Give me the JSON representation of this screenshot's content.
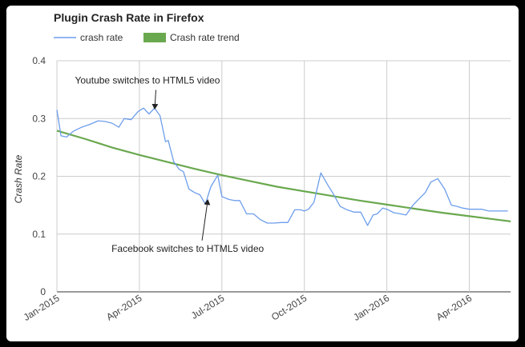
{
  "chart_data": {
    "type": "line",
    "title": "Plugin Crash Rate in Firefox",
    "xlabel": "",
    "ylabel": "Crash Rate",
    "ylim": [
      0,
      0.4
    ],
    "yticks": [
      0,
      0.1,
      0.2,
      0.3,
      0.4
    ],
    "ytick_labels": [
      "0",
      "0.1",
      "0.2",
      "0.3",
      "0.4"
    ],
    "xlim": [
      0,
      16.5
    ],
    "xticks": [
      {
        "label": "Jan-2015",
        "x": 0
      },
      {
        "label": "Apr-2015",
        "x": 3
      },
      {
        "label": "Jul-2015",
        "x": 6
      },
      {
        "label": "Oct-2015",
        "x": 9
      },
      {
        "label": "Jan-2016",
        "x": 12
      },
      {
        "label": "Apr-2016",
        "x": 15
      }
    ],
    "legend": [
      {
        "name": "crash rate",
        "color": "#6d9eeb",
        "kind": "line"
      },
      {
        "name": "Crash rate trend",
        "color": "#6aa84f",
        "kind": "box"
      }
    ],
    "series": [
      {
        "name": "crash rate",
        "color": "#6d9eeb",
        "x": [
          0,
          0.15,
          0.35,
          0.6,
          0.9,
          1.2,
          1.5,
          1.75,
          2.0,
          2.25,
          2.45,
          2.7,
          2.95,
          3.15,
          3.35,
          3.55,
          3.75,
          3.95,
          4.05,
          4.25,
          4.45,
          4.6,
          4.8,
          5.0,
          5.2,
          5.4,
          5.6,
          5.85,
          6.0,
          6.25,
          6.45,
          6.65,
          6.9,
          7.15,
          7.4,
          7.65,
          7.9,
          8.15,
          8.4,
          8.65,
          8.85,
          9.0,
          9.15,
          9.35,
          9.6,
          9.85,
          10.05,
          10.3,
          10.55,
          10.8,
          11.05,
          11.3,
          11.5,
          11.65,
          11.85,
          12.05,
          12.25,
          12.5,
          12.7,
          12.95,
          13.15,
          13.4,
          13.6,
          13.85,
          14.1,
          14.35,
          14.55,
          14.75,
          15.0,
          15.2,
          15.45,
          15.7,
          16.0,
          16.2,
          16.4
        ],
        "values": [
          0.315,
          0.27,
          0.268,
          0.278,
          0.285,
          0.29,
          0.296,
          0.295,
          0.292,
          0.285,
          0.3,
          0.298,
          0.312,
          0.318,
          0.308,
          0.318,
          0.305,
          0.26,
          0.262,
          0.225,
          0.212,
          0.208,
          0.178,
          0.172,
          0.168,
          0.152,
          0.182,
          0.202,
          0.165,
          0.16,
          0.158,
          0.158,
          0.135,
          0.135,
          0.125,
          0.119,
          0.119,
          0.12,
          0.12,
          0.142,
          0.142,
          0.14,
          0.143,
          0.155,
          0.206,
          0.185,
          0.17,
          0.148,
          0.142,
          0.138,
          0.138,
          0.115,
          0.133,
          0.135,
          0.145,
          0.142,
          0.137,
          0.135,
          0.133,
          0.15,
          0.16,
          0.172,
          0.19,
          0.196,
          0.178,
          0.15,
          0.148,
          0.145,
          0.143,
          0.143,
          0.143,
          0.14,
          0.14,
          0.14,
          0.14
        ]
      },
      {
        "name": "Crash rate trend",
        "color": "#6aa84f",
        "x": [
          0,
          1,
          2,
          3,
          4,
          5,
          6,
          7,
          8,
          9,
          10,
          11,
          12,
          13,
          14,
          15,
          16,
          16.5
        ],
        "values": [
          0.279,
          0.265,
          0.25,
          0.237,
          0.225,
          0.213,
          0.202,
          0.192,
          0.182,
          0.174,
          0.166,
          0.158,
          0.151,
          0.144,
          0.137,
          0.131,
          0.125,
          0.122
        ]
      }
    ],
    "annotations": [
      {
        "text": "Youtube switches to HTML5 video",
        "target": {
          "x": 3.5,
          "y": 0.31
        },
        "label_at": {
          "x": 3.6,
          "y": 0.355
        },
        "placement": "above"
      },
      {
        "text": "Facebook switches to HTML5 video",
        "target": {
          "x": 5.4,
          "y": 0.17
        },
        "label_at": {
          "x": 5.25,
          "y": 0.075
        },
        "placement": "below"
      }
    ]
  }
}
